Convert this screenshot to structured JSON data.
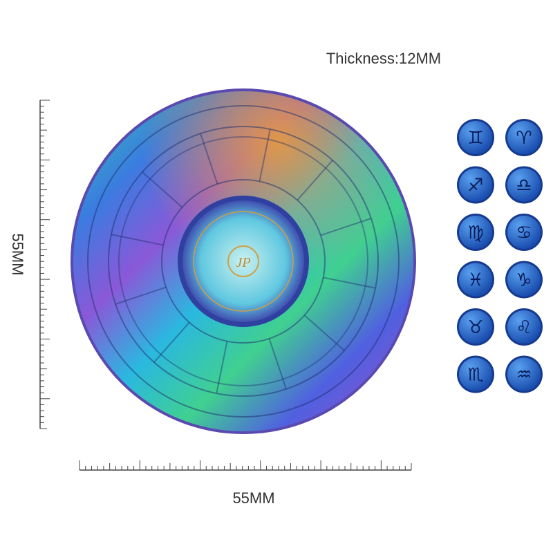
{
  "thickness_label": "Thickness:12MM",
  "height_label": "55MM",
  "width_label": "55MM",
  "coin": {
    "center_text": "JP"
  },
  "zodiac_icons": [
    "♊",
    "♈",
    "♐",
    "♎",
    "♍",
    "♋",
    "♓",
    "♑",
    "♉",
    "♌",
    "♏",
    "♒"
  ]
}
